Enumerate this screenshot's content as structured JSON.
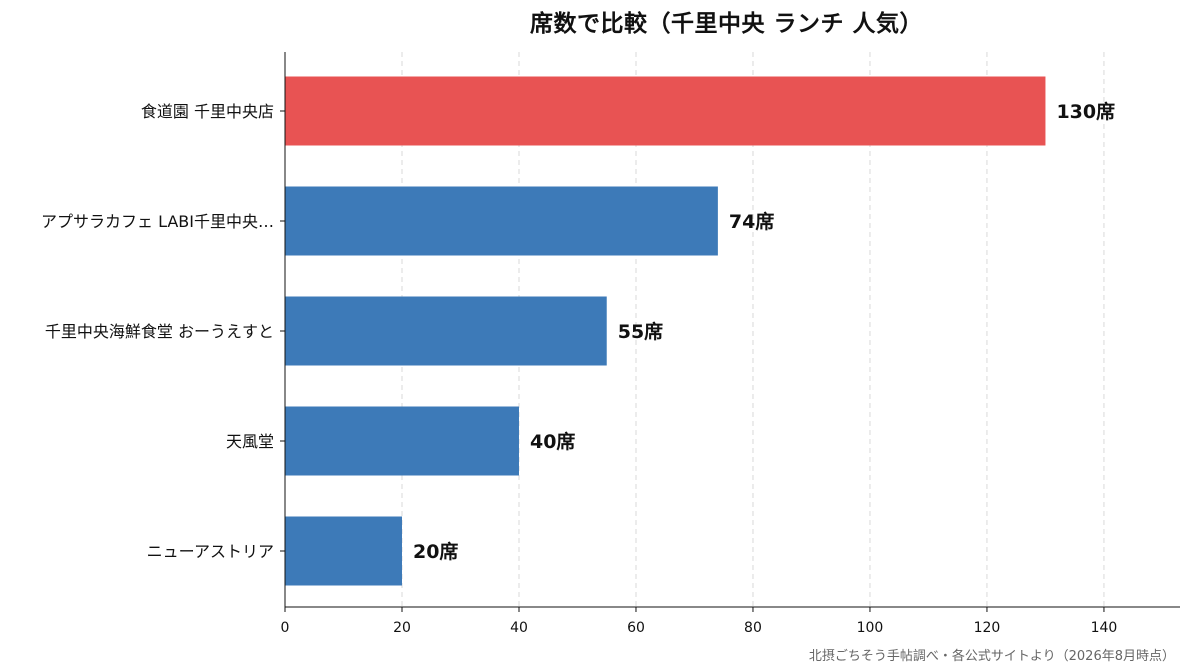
{
  "chart_data": {
    "type": "bar",
    "orientation": "horizontal",
    "title": "席数で比較（千里中央 ランチ 人気）",
    "source": "北摂ごちそう手帖調べ・各公式サイトより（2026年8月時点）",
    "value_suffix": "席",
    "categories": [
      "食道園 千里中央店",
      "アプサラカフェ LABI千里中央…",
      "千里中央海鮮食堂 おーうえすと",
      "天風堂",
      "ニューアストリア"
    ],
    "values": [
      130,
      74,
      55,
      40,
      20
    ],
    "bar_colors": [
      "#e85353",
      "#3d7ab8",
      "#3d7ab8",
      "#3d7ab8",
      "#3d7ab8"
    ],
    "xlim": [
      0,
      153
    ],
    "x_ticks": [
      0,
      20,
      40,
      60,
      80,
      100,
      120,
      140
    ],
    "grid": "vertical-dashed"
  }
}
